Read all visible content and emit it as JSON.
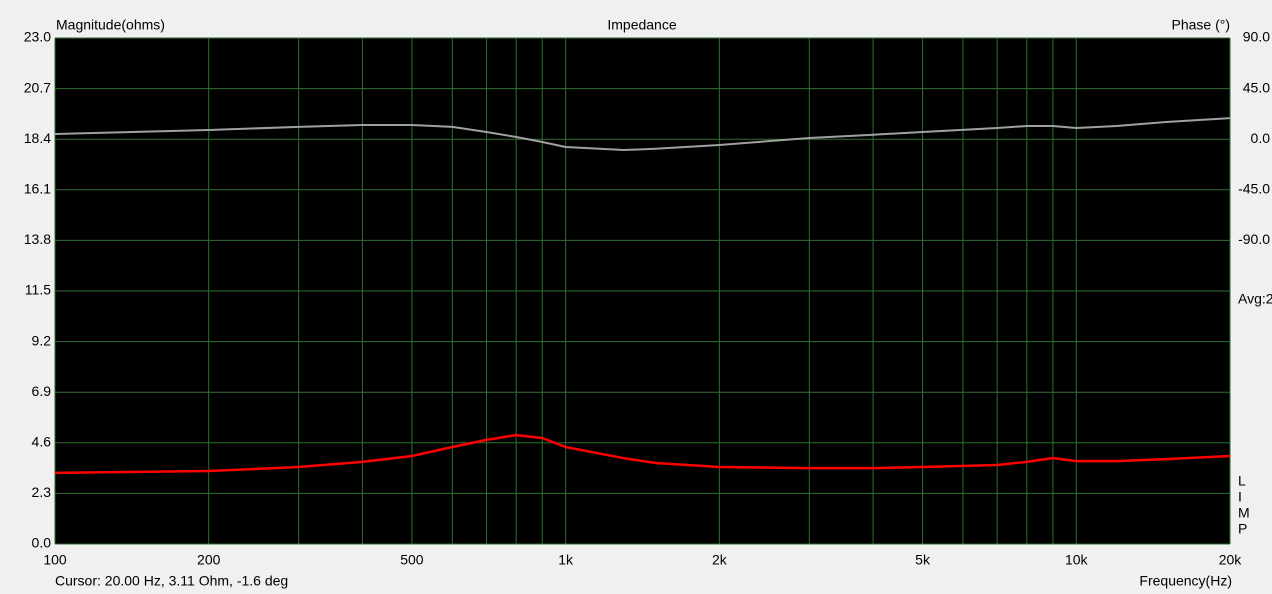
{
  "chart_data": {
    "type": "line",
    "title": "Impedance",
    "y_label": "Magnitude(ohms)",
    "y2_label": "Phase (°)",
    "x_label": "Frequency(Hz)",
    "cursor_text": "Cursor: 20.00 Hz, 3.11 Ohm, -1.6 deg",
    "avg_text": "Avg:2",
    "side_letters": [
      "L",
      "I",
      "M",
      "P"
    ],
    "xscale": "log",
    "grid": true,
    "grid_color": "#2f6e2f",
    "background": "#000000",
    "xlim": [
      100,
      20000
    ],
    "xticks": [
      100,
      200,
      500,
      {
        "value": 1000,
        "label": "1k"
      },
      {
        "value": 2000,
        "label": "2k"
      },
      {
        "value": 5000,
        "label": "5k"
      },
      {
        "value": 10000,
        "label": "10k"
      },
      {
        "value": 20000,
        "label": "20k"
      }
    ],
    "xminor": [
      300,
      400,
      600,
      700,
      800,
      900,
      3000,
      4000,
      6000,
      7000,
      8000,
      9000
    ],
    "ylim": [
      0,
      23
    ],
    "yticks": [
      {
        "value": 0,
        "label": "0.0"
      },
      2.3,
      4.6,
      6.9,
      9.2,
      11.5,
      13.8,
      16.1,
      18.4,
      20.7,
      {
        "value": 23,
        "label": "23.0"
      }
    ],
    "y2lim": [
      -360,
      90
    ],
    "y2ticks": [
      {
        "value": 90,
        "label": "90.0"
      },
      {
        "value": 45,
        "label": "45.0"
      },
      {
        "value": 0,
        "label": "0.0"
      },
      {
        "value": -45,
        "label": "-45.0"
      },
      {
        "value": -90,
        "label": "-90.0"
      }
    ],
    "x": [
      100,
      200,
      300,
      400,
      500,
      600,
      700,
      800,
      900,
      1000,
      1300,
      1500,
      2000,
      3000,
      4000,
      5000,
      7000,
      8000,
      9000,
      10000,
      12000,
      15000,
      20000
    ],
    "series": [
      {
        "color": "#ff0000",
        "values": [
          3.23,
          3.32,
          3.5,
          3.73,
          4.0,
          4.41,
          4.73,
          4.95,
          4.82,
          4.41,
          3.9,
          3.68,
          3.5,
          3.45,
          3.45,
          3.5,
          3.59,
          3.73,
          3.91,
          3.77,
          3.77,
          3.86,
          4.0
        ]
      },
      {
        "color": "#a0a0a0",
        "axis": "y2",
        "values": [
          4.6,
          8.2,
          10.9,
          12.6,
          12.6,
          10.9,
          6.4,
          2.0,
          -2.5,
          -6.9,
          -9.6,
          -8.5,
          -5.2,
          1.1,
          4.0,
          6.4,
          10.0,
          11.7,
          11.7,
          10.0,
          11.7,
          15.3,
          18.8
        ]
      }
    ]
  }
}
